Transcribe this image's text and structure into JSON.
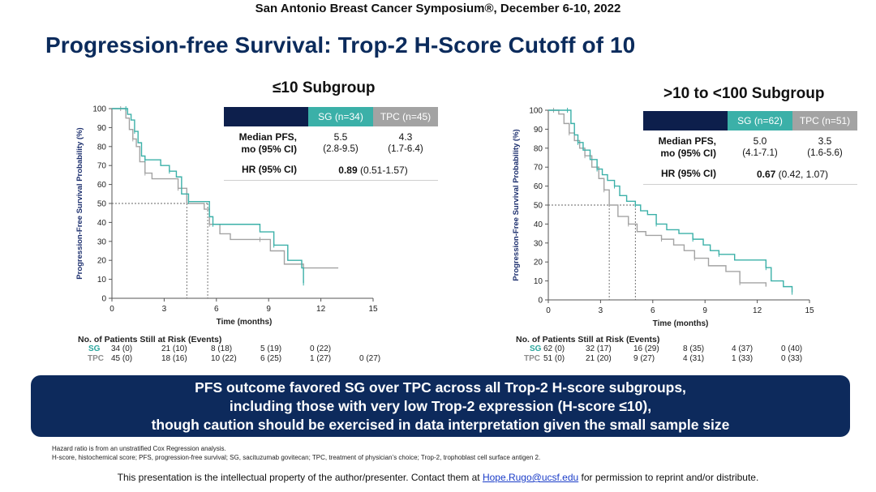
{
  "header": {
    "conference": "San Antonio Breast Cancer Symposium®, December 6-10, 2022",
    "title": "Progression-free Survival: Trop-2 H-Score Cutoff of 10"
  },
  "colors": {
    "sg": "#3bb0a8",
    "tpc": "#a3a3a3",
    "navy": "#0d1f4c"
  },
  "chart_data": [
    {
      "type": "line",
      "title": "≤10 Subgroup",
      "xlabel": "Time (months)",
      "ylabel": "Progression-Free Survival Probability (%)",
      "xlim": [
        0,
        15
      ],
      "ylim": [
        0,
        100
      ],
      "x_ticks": [
        0,
        3,
        6,
        9,
        12,
        15
      ],
      "y_ticks": [
        0,
        10,
        20,
        30,
        40,
        50,
        60,
        70,
        80,
        90,
        100
      ],
      "grid": false,
      "median_markers": [
        4.3,
        5.5
      ],
      "series": [
        {
          "name": "SG",
          "x": [
            0,
            0.8,
            0.9,
            1.1,
            1.3,
            1.5,
            1.7,
            1.9,
            2.3,
            2.8,
            3.3,
            3.7,
            4.0,
            4.4,
            5.5,
            5.6,
            5.8,
            6.4,
            8.5,
            9.3,
            10.1,
            10.9,
            11.0
          ],
          "y": [
            100,
            100,
            97,
            94,
            88,
            82,
            75,
            73,
            73,
            70,
            67,
            64,
            55,
            51,
            51,
            43,
            39,
            39,
            35,
            28,
            20,
            16,
            8
          ]
        },
        {
          "name": "TPC",
          "x": [
            0,
            0.5,
            0.8,
            1.0,
            1.2,
            1.4,
            1.6,
            1.9,
            2.3,
            3.1,
            3.8,
            4.3,
            5.3,
            5.6,
            6.2,
            6.8,
            8.5,
            9.1,
            9.9,
            11.0,
            13.0
          ],
          "y": [
            100,
            100,
            95,
            89,
            84,
            80,
            72,
            66,
            63,
            63,
            58,
            50,
            47,
            39,
            34,
            31,
            31,
            25,
            18,
            16,
            16
          ]
        }
      ],
      "at_risk": {
        "header": "No. of Patients Still at Risk (Events)",
        "times": [
          0,
          3,
          6,
          9,
          12,
          15
        ],
        "rows": [
          {
            "label": "SG",
            "values": [
              "34 (0)",
              "21 (10)",
              "8 (18)",
              "5 (19)",
              "0 (22)",
              ""
            ]
          },
          {
            "label": "TPC",
            "values": [
              "45 (0)",
              "18 (16)",
              "10 (22)",
              "6 (25)",
              "1 (27)",
              "0 (27)"
            ]
          }
        ]
      },
      "table": {
        "headers": [
          "SG (n=34)",
          "TPC (n=45)"
        ],
        "median_label": [
          "Median PFS,",
          "mo (95% CI)"
        ],
        "median": [
          "5.5",
          "4.3"
        ],
        "ci": [
          "(2.8-9.5)",
          "(1.7-6.4)"
        ],
        "hr_label": "HR (95% CI)",
        "hr_value": "0.89",
        "hr_ci": "(0.51-1.57)"
      }
    },
    {
      "type": "line",
      "title": ">10 to <100 Subgroup",
      "xlabel": "Time (months)",
      "ylabel": "Progression-Free Survival Probability (%)",
      "xlim": [
        0,
        15
      ],
      "ylim": [
        0,
        100
      ],
      "x_ticks": [
        0,
        3,
        6,
        9,
        12,
        15
      ],
      "y_ticks": [
        0,
        10,
        20,
        30,
        40,
        50,
        60,
        70,
        80,
        90,
        100
      ],
      "grid": false,
      "median_markers": [
        3.5,
        5.0
      ],
      "series": [
        {
          "name": "SG",
          "x": [
            0,
            1.1,
            1.3,
            1.5,
            1.7,
            2.0,
            2.4,
            2.8,
            3.1,
            3.4,
            3.8,
            4.1,
            4.5,
            5.0,
            5.3,
            5.7,
            6.2,
            6.8,
            7.5,
            8.3,
            8.9,
            9.3,
            9.8,
            10.7,
            11.4,
            12.5,
            12.8,
            13.5,
            14.0
          ],
          "y": [
            100,
            100,
            93,
            87,
            83,
            79,
            74,
            69,
            66,
            63,
            60,
            55,
            52,
            50,
            47,
            45,
            40,
            37,
            35,
            32,
            29,
            26,
            24,
            21,
            21,
            17,
            10,
            7,
            4
          ]
        },
        {
          "name": "TPC",
          "x": [
            0,
            0.3,
            0.6,
            0.9,
            1.2,
            1.5,
            1.8,
            2.1,
            2.5,
            2.9,
            3.2,
            3.5,
            4.0,
            4.6,
            5.1,
            5.6,
            6.5,
            7.2,
            7.8,
            8.4,
            9.2,
            10.2,
            11.0,
            12.5
          ],
          "y": [
            100,
            100,
            98,
            93,
            88,
            84,
            80,
            76,
            70,
            64,
            58,
            50,
            44,
            40,
            36,
            34,
            32,
            29,
            26,
            22,
            18,
            15,
            9,
            7
          ]
        }
      ],
      "at_risk": {
        "header": "No. of Patients Still at Risk (Events)",
        "times": [
          0,
          3,
          6,
          9,
          12,
          15
        ],
        "rows": [
          {
            "label": "SG",
            "values": [
              "62 (0)",
              "32 (17)",
              "16 (29)",
              "8 (35)",
              "4 (37)",
              "0 (40)"
            ]
          },
          {
            "label": "TPC",
            "values": [
              "51 (0)",
              "21 (20)",
              "9 (27)",
              "4 (31)",
              "1 (33)",
              "0 (33)"
            ]
          }
        ]
      },
      "table": {
        "headers": [
          "SG (n=62)",
          "TPC (n=51)"
        ],
        "median_label": [
          "Median PFS,",
          "mo (95% CI)"
        ],
        "median": [
          "5.0",
          "3.5"
        ],
        "ci": [
          "(4.1-7.1)",
          "(1.6-5.6)"
        ],
        "hr_label": "HR (95% CI)",
        "hr_value": "0.67",
        "hr_ci": "(0.42, 1.07)"
      }
    }
  ],
  "conclusion": [
    "PFS outcome favored SG over TPC across all Trop-2 H-score subgroups,",
    "including those with very low Trop-2 expression (H-score ≤10),",
    "though caution should be exercised in data interpretation given the small sample size"
  ],
  "footnotes": [
    "Hazard ratio is from an unstratified Cox Regression analysis.",
    "H-score, histochemical score; PFS, progression-free survival; SG, sacituzumab govitecan; TPC, treatment of physician’s choice; Trop-2, trophoblast cell surface antigen 2."
  ],
  "disclaimer": {
    "before": "This presentation is the intellectual property of the author/presenter. Contact them at",
    "email": "Hope.Rugo@ucsf.edu",
    "after": "for permission to reprint and/or distribute."
  }
}
